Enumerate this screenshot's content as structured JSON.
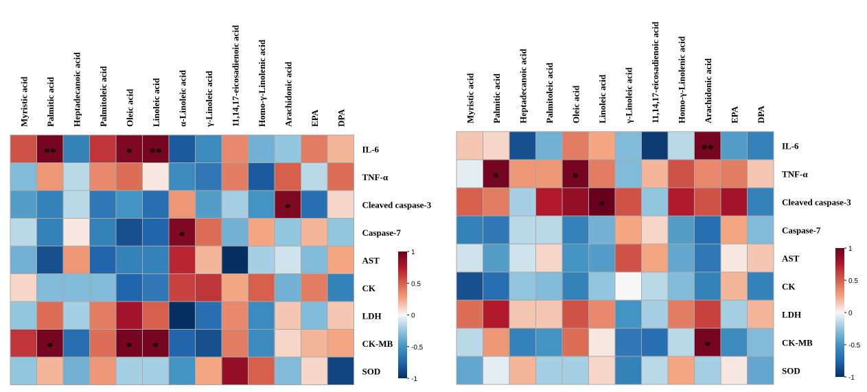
{
  "chart_data": [
    {
      "type": "heatmap",
      "x_categories": [
        "Myristic acid",
        "Palmitic acid",
        "Heptadecanoic acid",
        "Palmitoleic acid",
        "Oleic acid",
        "Linoleic acid",
        "α-Linoleic acid",
        "γ-Linoleic acid",
        "11,14,17-eicosadienoic acid",
        "Homo-γ-Linolenic acid",
        "Arachidonic acid",
        "EPA",
        "DPA"
      ],
      "y_categories": [
        "IL-6",
        "TNF-α",
        "Cleaved caspase-3",
        "Caspase-7",
        "AST",
        "CK",
        "LDH",
        "CK-MB",
        "SOD"
      ],
      "values": [
        [
          0.55,
          0.95,
          -0.6,
          0.65,
          0.92,
          0.95,
          -0.8,
          -0.55,
          0.35,
          -0.35,
          -0.25,
          0.4,
          0.2
        ],
        [
          -0.3,
          0.3,
          -0.15,
          0.35,
          0.45,
          0.05,
          -0.55,
          -0.65,
          0.4,
          -0.8,
          0.5,
          -0.15,
          0.45
        ],
        [
          -0.45,
          -0.6,
          -0.15,
          -0.65,
          -0.5,
          -0.7,
          0.3,
          -0.45,
          -0.2,
          -0.5,
          0.92,
          -0.7,
          0.1
        ],
        [
          -0.15,
          -0.6,
          0.05,
          -0.6,
          -0.85,
          -0.75,
          0.92,
          0.45,
          -0.35,
          0.25,
          -0.25,
          0.2,
          -0.25
        ],
        [
          -0.35,
          -0.85,
          0.3,
          -0.75,
          -0.6,
          -0.6,
          0.7,
          0.2,
          -1.0,
          -0.2,
          -0.1,
          -0.3,
          0.25
        ],
        [
          0.1,
          -0.3,
          -0.3,
          -0.3,
          -0.75,
          -0.65,
          0.6,
          0.65,
          0.25,
          0.5,
          -0.35,
          0.4,
          -0.6
        ],
        [
          -0.25,
          0.45,
          -0.2,
          0.4,
          0.8,
          0.5,
          -1.0,
          -0.7,
          0.35,
          -0.55,
          0.15,
          -0.3,
          0.15
        ],
        [
          0.65,
          0.95,
          -0.7,
          0.45,
          0.95,
          0.95,
          -0.75,
          -0.85,
          0.4,
          -0.55,
          0.1,
          0.2,
          0.25
        ],
        [
          -0.25,
          0.2,
          -0.35,
          0.3,
          -0.2,
          -0.2,
          -0.5,
          0.25,
          0.85,
          0.5,
          -0.3,
          0.1,
          -0.9
        ]
      ],
      "annotations": [
        {
          "row": 0,
          "col": 1,
          "text": "**"
        },
        {
          "row": 0,
          "col": 4,
          "text": "*"
        },
        {
          "row": 0,
          "col": 5,
          "text": "**"
        },
        {
          "row": 2,
          "col": 10,
          "text": "*"
        },
        {
          "row": 3,
          "col": 6,
          "text": "*"
        },
        {
          "row": 7,
          "col": 1,
          "text": "*"
        },
        {
          "row": 7,
          "col": 4,
          "text": "*"
        },
        {
          "row": 7,
          "col": 5,
          "text": "*"
        }
      ],
      "colorbar": {
        "range": [
          -1,
          1
        ],
        "ticks": [
          "1",
          "0.5",
          "0",
          "-0.5",
          "-1"
        ]
      }
    },
    {
      "type": "heatmap",
      "x_categories": [
        "Myristic acid",
        "Palmitic acid",
        "Heptadecanoic acid",
        "Palmitoleic acid",
        "Oleic acid",
        "Linoleic acid",
        "γ-Linoleic acid",
        "11,14,17-eicosadienoic acid",
        "Homo-γ-Linolenic acid",
        "Arachidonic acid",
        "EPA",
        "DPA"
      ],
      "y_categories": [
        "IL-6",
        "TNF-α",
        "Cleaved caspase-3",
        "Caspase-7",
        "AST",
        "CK",
        "LDH",
        "CK-MB",
        "SOD"
      ],
      "values": [
        [
          0.15,
          0.1,
          -0.85,
          -0.35,
          0.4,
          0.25,
          -0.3,
          -0.95,
          -0.15,
          0.95,
          -0.45,
          -0.6
        ],
        [
          -0.05,
          0.95,
          0.3,
          0.3,
          0.95,
          0.4,
          -0.3,
          0.2,
          0.55,
          0.35,
          0.4,
          0.15
        ],
        [
          0.5,
          0.4,
          -0.2,
          0.75,
          0.85,
          1.0,
          0.55,
          -0.25,
          0.75,
          0.55,
          0.8,
          -0.6
        ],
        [
          -0.6,
          -0.65,
          -0.15,
          -0.15,
          -0.6,
          -0.35,
          0.25,
          0.1,
          -0.45,
          -0.7,
          0.25,
          -0.3
        ],
        [
          -0.1,
          -0.45,
          -0.1,
          0.1,
          -0.5,
          -0.45,
          0.55,
          0.25,
          -0.4,
          -0.65,
          0.05,
          0.15
        ],
        [
          -0.85,
          -0.7,
          -0.25,
          -0.3,
          -0.6,
          -0.25,
          0.0,
          -0.15,
          -0.3,
          -0.6,
          0.2,
          -0.6
        ],
        [
          0.45,
          0.75,
          0.15,
          0.15,
          0.55,
          0.35,
          -0.5,
          -0.2,
          0.4,
          0.6,
          -0.2,
          0.2
        ],
        [
          -0.15,
          0.3,
          -0.6,
          -0.5,
          0.45,
          0.05,
          -0.65,
          -0.7,
          -0.15,
          0.95,
          -0.55,
          -0.3
        ],
        [
          -0.4,
          -0.05,
          0.2,
          -0.2,
          -0.2,
          0.1,
          -0.6,
          -0.15,
          0.25,
          -0.2,
          0.05,
          -0.4
        ]
      ],
      "annotations": [
        {
          "row": 0,
          "col": 9,
          "text": "**"
        },
        {
          "row": 1,
          "col": 1,
          "text": "*"
        },
        {
          "row": 1,
          "col": 4,
          "text": "*"
        },
        {
          "row": 2,
          "col": 5,
          "text": "*"
        },
        {
          "row": 7,
          "col": 9,
          "text": "*"
        }
      ],
      "colorbar": {
        "range": [
          -1,
          1
        ],
        "ticks": [
          "1",
          "0.5",
          "0",
          "-0.5",
          "-1"
        ]
      }
    }
  ]
}
